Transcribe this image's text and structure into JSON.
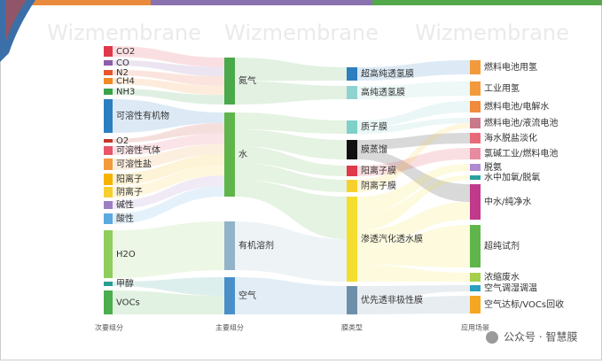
{
  "watermark": "Wizmembrane",
  "columns": [
    {
      "title": "次要组分",
      "nodes": [
        "CO2",
        "CO",
        "N2",
        "CH4",
        "NH3",
        "可溶性有机物",
        "O2",
        "可溶性气体",
        "可溶性盐",
        "阳离子",
        "阴离子",
        "碱性",
        "酸性",
        "H2O",
        "甲醇",
        "VOCs"
      ]
    },
    {
      "title": "主要组分",
      "nodes": [
        "氮气",
        "水",
        "有机溶剂",
        "空气"
      ]
    },
    {
      "title": "膜类型",
      "nodes": [
        "超高纯透氢膜",
        "高纯透氢膜",
        "质子膜",
        "膜蒸馏",
        "阳离子膜",
        "阴离子膜",
        "渗透汽化透水膜",
        "优先透非极性膜"
      ]
    },
    {
      "title": "应用场景",
      "nodes": [
        "燃料电池用氢",
        "工业用氢",
        "燃料电池/电解水",
        "燃料电池/液流电池",
        "海水脱盐淡化",
        "氯碱工业/燃料电池",
        "脱氨",
        "水中加氧/脱氧",
        "中水/纯净水",
        "超纯试剂",
        "浓缩废水",
        "空气调湿调温",
        "空气达标/VOCs回收"
      ]
    }
  ],
  "footer": "公众号 · 智慧膜"
}
